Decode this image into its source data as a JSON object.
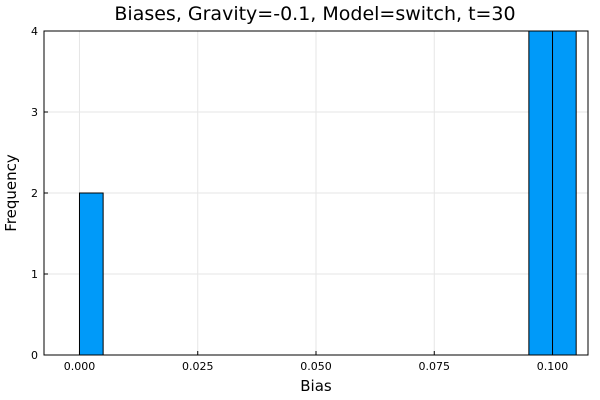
{
  "chart_data": {
    "type": "bar",
    "title": "Biases, Gravity=-0.1, Model=switch, t=30",
    "xlabel": "Bias",
    "ylabel": "Frequency",
    "xlim": [
      -0.0075,
      0.1075
    ],
    "ylim": [
      0,
      4
    ],
    "xticks": [
      0.0,
      0.025,
      0.05,
      0.075,
      0.1
    ],
    "xtick_labels": [
      "0.000",
      "0.025",
      "0.050",
      "0.075",
      "0.100"
    ],
    "yticks": [
      0,
      1,
      2,
      3,
      4
    ],
    "ytick_labels": [
      "0",
      "1",
      "2",
      "3",
      "4"
    ],
    "grid": true,
    "bar_color": "#009af9",
    "bins": [
      {
        "x0": 0.0,
        "x1": 0.005,
        "count": 2
      },
      {
        "x0": 0.095,
        "x1": 0.1,
        "count": 4
      },
      {
        "x0": 0.1,
        "x1": 0.105,
        "count": 4
      }
    ]
  }
}
